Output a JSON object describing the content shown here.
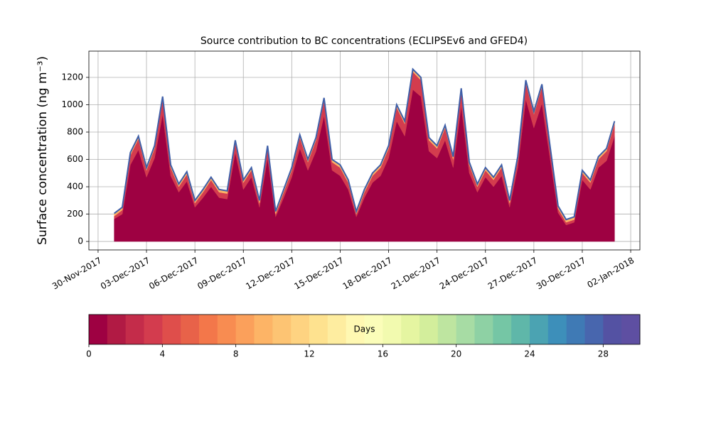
{
  "chart_data": {
    "type": "stacked_area",
    "title": "Source contribution to BC concentrations (ECLIPSEv6 and GFED4)",
    "y_label": "Surface concentration (ng m⁻³)",
    "x": [
      1,
      1.5,
      2,
      2.5,
      3,
      3.5,
      4,
      4.5,
      5,
      5.5,
      6,
      6.5,
      7,
      7.5,
      8,
      8.5,
      9,
      9.5,
      10,
      10.5,
      11,
      11.5,
      12,
      12.5,
      13,
      13.5,
      14,
      14.5,
      15,
      15.5,
      16,
      16.5,
      17,
      17.5,
      18,
      18.5,
      19,
      19.5,
      20,
      20.5,
      21,
      21.5,
      22,
      22.5,
      23,
      23.5,
      24,
      24.5,
      25,
      25.5,
      26,
      26.5,
      27,
      27.5,
      28,
      28.5,
      29,
      29.5,
      30,
      30.5,
      31,
      31.5,
      32
    ],
    "series": [
      {
        "color": "#9e0142",
        "values": [
          165,
          200,
          560,
          670,
          470,
          610,
          930,
          480,
          360,
          440,
          250,
          320,
          400,
          320,
          310,
          650,
          380,
          470,
          250,
          610,
          180,
          320,
          470,
          680,
          520,
          660,
          920,
          520,
          480,
          380,
          180,
          320,
          430,
          480,
          610,
          880,
          770,
          1110,
          1060,
          660,
          610,
          740,
          540,
          990,
          500,
          360,
          470,
          400,
          480,
          250,
          540,
          1040,
          830,
          1010,
          610,
          210,
          120,
          140,
          450,
          380,
          540,
          590,
          770
        ]
      },
      {
        "color": "#d33c4e",
        "values": [
          20,
          30,
          70,
          80,
          50,
          70,
          110,
          60,
          40,
          50,
          30,
          40,
          50,
          40,
          40,
          70,
          50,
          50,
          30,
          70,
          20,
          40,
          50,
          80,
          60,
          80,
          110,
          60,
          60,
          50,
          20,
          40,
          50,
          60,
          70,
          100,
          90,
          130,
          120,
          80,
          70,
          90,
          60,
          110,
          60,
          40,
          50,
          50,
          60,
          30,
          60,
          120,
          100,
          120,
          70,
          30,
          20,
          20,
          50,
          50,
          60,
          70,
          90
        ]
      },
      {
        "color": "#fdb466",
        "values": [
          20,
          20,
          20,
          20,
          20,
          20,
          20,
          20,
          20,
          20,
          20,
          20,
          20,
          20,
          20,
          20,
          20,
          20,
          20,
          20,
          20,
          20,
          20,
          20,
          20,
          20,
          20,
          20,
          20,
          20,
          20,
          20,
          20,
          20,
          20,
          20,
          20,
          20,
          20,
          20,
          20,
          20,
          20,
          20,
          20,
          20,
          20,
          20,
          20,
          20,
          20,
          20,
          20,
          20,
          20,
          20,
          20,
          20,
          20,
          20,
          20,
          20,
          20
        ]
      }
    ],
    "outline_color": "#3f5fa8",
    "xlim": [
      -0.57,
      33.57
    ],
    "xticks": [
      {
        "value": 0,
        "label": "30-Nov-2017"
      },
      {
        "value": 3,
        "label": "03-Dec-2017"
      },
      {
        "value": 6,
        "label": "06-Dec-2017"
      },
      {
        "value": 9,
        "label": "09-Dec-2017"
      },
      {
        "value": 12,
        "label": "12-Dec-2017"
      },
      {
        "value": 15,
        "label": "15-Dec-2017"
      },
      {
        "value": 18,
        "label": "18-Dec-2017"
      },
      {
        "value": 21,
        "label": "21-Dec-2017"
      },
      {
        "value": 24,
        "label": "24-Dec-2017"
      },
      {
        "value": 27,
        "label": "27-Dec-2017"
      },
      {
        "value": 30,
        "label": "30-Dec-2017"
      },
      {
        "value": 33,
        "label": "02-Jan-2018"
      }
    ],
    "ylim": [
      -62,
      1392
    ],
    "yticks": [
      0,
      200,
      400,
      600,
      800,
      1000,
      1200
    ],
    "grid": true,
    "colorbar": {
      "label": "Days",
      "lim": [
        0,
        30
      ],
      "ticks": [
        0,
        4,
        8,
        12,
        16,
        20,
        24,
        28
      ],
      "colors": [
        "#9e0142",
        "#b11a44",
        "#c42c4a",
        "#d33c4e",
        "#df4e4b",
        "#e86249",
        "#f3774a",
        "#f88c51",
        "#fba05b",
        "#fdb466",
        "#fdc473",
        "#fed381",
        "#fee28f",
        "#feeda0",
        "#fff8b2",
        "#fbfdb9",
        "#f2faaf",
        "#e5f5a1",
        "#d3ee9c",
        "#bee5a0",
        "#a7dca4",
        "#8ed1a4",
        "#75c6a5",
        "#5fb7a9",
        "#4ba3b2",
        "#3d8fba",
        "#3f7ab5",
        "#4866ae",
        "#5452a3",
        "#5e4fa2"
      ]
    }
  }
}
